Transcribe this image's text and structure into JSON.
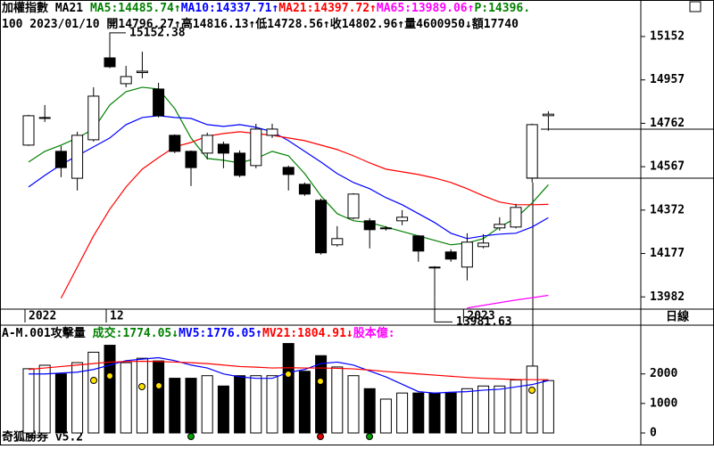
{
  "header": {
    "line1": [
      {
        "text": "加權指數 MA21 ",
        "color": "#000000"
      },
      {
        "text": "MA5:14485.74↑",
        "color": "#008000"
      },
      {
        "text": "MA10:14337.71↑",
        "color": "#0000ff"
      },
      {
        "text": "MA21:14397.72↑",
        "color": "#ff0000"
      },
      {
        "text": "MA65:13989.06↑",
        "color": "#ff00ff"
      },
      {
        "text": "P:14396.",
        "color": "#008000"
      }
    ],
    "line2": [
      {
        "text": "100 2023/01/10 開14796.27↑高14816.13↑低14728.56↑收14802.96↑量4600950↓額17740",
        "color": "#000000"
      }
    ],
    "volume_header": [
      {
        "text": "A-M.001攻擊量 ",
        "color": "#000000"
      },
      {
        "text": "成交:1774.05↓",
        "color": "#008000"
      },
      {
        "text": "MV5:1776.05↑",
        "color": "#0000ff"
      },
      {
        "text": "MV21:1804.91↓",
        "color": "#ff0000"
      },
      {
        "text": "股本億:",
        "color": "#ff00ff"
      }
    ],
    "period": "日線",
    "footer": "奇狐勝券 v5.2"
  },
  "chart_data": [
    {
      "type": "candlestick",
      "categories": [
        "2022",
        null,
        null,
        null,
        null,
        "12",
        null,
        null,
        null,
        null,
        null,
        null,
        null,
        null,
        null,
        null,
        null,
        null,
        null,
        null,
        null,
        null,
        null,
        null,
        null,
        null,
        null,
        "2023",
        null,
        null,
        null,
        null,
        null
      ],
      "open": [
        14664,
        14784,
        14636,
        14515,
        14688,
        15056,
        14940,
        14990,
        14916,
        14708,
        14636,
        14628,
        14668,
        14628,
        14572,
        14708,
        14564,
        14488,
        14416,
        14216,
        14336,
        14324,
        14288,
        14324,
        14256,
        14116,
        14184,
        14116,
        14208,
        14292,
        14296,
        14516,
        14796.27
      ],
      "high": [
        14800,
        14844,
        14660,
        14724,
        14924,
        15152.38,
        15020,
        15084,
        14944,
        14712,
        14640,
        14720,
        14680,
        14640,
        14760,
        14760,
        14572,
        14496,
        14424,
        14300,
        14448,
        14336,
        14300,
        14372,
        14260,
        14120,
        14196,
        14268,
        14264,
        14340,
        14400,
        14760,
        14816.13
      ],
      "low": [
        14660,
        14768,
        14520,
        14460,
        14680,
        15010,
        14924,
        14964,
        14788,
        14628,
        14480,
        14600,
        14560,
        14520,
        14560,
        14696,
        14460,
        14436,
        14172,
        14208,
        14330,
        14200,
        14280,
        14304,
        14140,
        13981.63,
        14140,
        14056,
        14200,
        14280,
        14290,
        14496,
        14728.56
      ],
      "close": [
        14796,
        14788,
        14563,
        14708,
        14884,
        15016,
        14972,
        14996,
        14796,
        14636,
        14563,
        14708,
        14628,
        14528,
        14736,
        14736,
        14532,
        14444,
        14180,
        14244,
        14444,
        14284,
        14292,
        14340,
        14188,
        14112,
        14152,
        14228,
        14224,
        14308,
        14384,
        14756,
        14802.96
      ],
      "max_label": "15152.38",
      "min_label": "13981.63",
      "up_color": "#ffffff",
      "down_color": "#000000",
      "series": [
        {
          "name": "MA5",
          "color": "#008000",
          "values": [
            14588,
            14636,
            14664,
            14696,
            14736,
            14844,
            14904,
            14924,
            14916,
            14828,
            14696,
            14604,
            14596,
            14584,
            14604,
            14636,
            14616,
            14536,
            14436,
            14356,
            14324,
            14316,
            14296,
            14276,
            14256,
            14236,
            14216,
            14224,
            14244,
            14296,
            14336,
            14404,
            14485.74
          ]
        },
        {
          "name": "MA10",
          "color": "#0000ff",
          "values": [
            14476,
            14528,
            14576,
            14616,
            14656,
            14696,
            14756,
            14788,
            14796,
            14788,
            14784,
            14756,
            14748,
            14756,
            14744,
            14724,
            14684,
            14636,
            14588,
            14536,
            14496,
            14468,
            14428,
            14396,
            14356,
            14316,
            14268,
            14244,
            14256,
            14264,
            14268,
            14296,
            14337.71
          ]
        },
        {
          "name": "MA21",
          "color": "#ff0000",
          "values": [
            null,
            null,
            13976,
            14116,
            14256,
            14376,
            14476,
            14556,
            14608,
            14656,
            14676,
            14704,
            14716,
            14724,
            14716,
            14708,
            14696,
            14684,
            14664,
            14644,
            14616,
            14584,
            14556,
            14544,
            14532,
            14516,
            14496,
            14468,
            14436,
            14408,
            14396,
            14396,
            14397.72
          ]
        },
        {
          "name": "MA65",
          "color": "#ff00ff",
          "values": [
            null,
            null,
            null,
            null,
            null,
            null,
            null,
            null,
            null,
            null,
            null,
            null,
            null,
            null,
            null,
            null,
            null,
            null,
            null,
            null,
            null,
            null,
            null,
            null,
            null,
            null,
            null,
            13932,
            13944,
            13956,
            13968,
            13978,
            13989.06
          ]
        }
      ],
      "ylim": [
        13927,
        15316
      ],
      "yticks": [
        13982,
        14177,
        14372,
        14567,
        14762,
        14957,
        15152
      ]
    },
    {
      "type": "bar",
      "values": [
        2176,
        2294,
        2000,
        2382,
        2735,
        2970,
        2382,
        2530,
        2440,
        1853,
        1853,
        1940,
        1590,
        1940,
        1940,
        1940,
        3030,
        2090,
        2618,
        2235,
        1940,
        1500,
        1147,
        1353,
        1353,
        1353,
        1353,
        1500,
        1590,
        1590,
        1794,
        2265,
        1774.05
      ],
      "series": [
        {
          "name": "MV5",
          "color": "#0000ff",
          "values": [
            2000,
            2000,
            2030,
            2060,
            2150,
            2300,
            2450,
            2500,
            2550,
            2450,
            2300,
            2200,
            2000,
            1900,
            1850,
            1850,
            2050,
            2150,
            2350,
            2400,
            2300,
            2100,
            1900,
            1650,
            1400,
            1350,
            1380,
            1400,
            1450,
            1480,
            1560,
            1640,
            1776.05
          ]
        },
        {
          "name": "MV21",
          "color": "#ff0000",
          "values": [
            2150,
            2200,
            2250,
            2300,
            2350,
            2400,
            2420,
            2430,
            2420,
            2400,
            2380,
            2350,
            2300,
            2250,
            2230,
            2200,
            2210,
            2200,
            2200,
            2190,
            2170,
            2130,
            2080,
            2040,
            2000,
            1960,
            1920,
            1880,
            1850,
            1830,
            1810,
            1805,
            1804.91
          ]
        }
      ],
      "ylim": [
        0,
        3500
      ],
      "yticks": [
        0,
        1000,
        2000
      ]
    }
  ]
}
